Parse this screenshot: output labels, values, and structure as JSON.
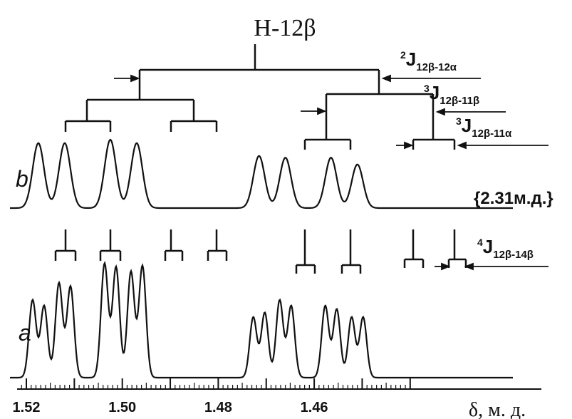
{
  "title": "H-12β",
  "trace_labels": {
    "b": "b",
    "a": "a"
  },
  "decoupling_note": "{2.31м.д.}",
  "couplings": {
    "j1": {
      "sup": "2",
      "main": "J",
      "sub": "12β-12α"
    },
    "j2": {
      "sup": "3",
      "main": "J",
      "sub": "12β-11β"
    },
    "j3": {
      "sup": "3",
      "main": "J",
      "sub": "12β-11α"
    },
    "j4": {
      "sup": "4",
      "main": "J",
      "sub": "12β-14β"
    }
  },
  "axis": {
    "label": "δ, м. д.",
    "direction": "decreasing-right",
    "range": [
      1.525,
      1.44
    ],
    "tick_labels": [
      "1.52",
      "1.50",
      "1.48",
      "1.46"
    ]
  },
  "spectrum_b": {
    "peak_positions_ppm": [
      1.5175,
      1.512,
      1.5025,
      1.497,
      1.4715,
      1.466,
      1.4565,
      1.451
    ],
    "peak_heights": [
      0.76,
      0.76,
      0.8,
      0.76,
      0.61,
      0.59,
      0.59,
      0.51
    ]
  },
  "spectrum_a": {
    "peak_positions_ppm": [
      1.5187,
      1.5163,
      1.5132,
      1.5108,
      1.5037,
      1.5013,
      1.4982,
      1.4958,
      1.4727,
      1.4703,
      1.4672,
      1.4648,
      1.4577,
      1.4553,
      1.4522,
      1.4498
    ],
    "peak_heights": [
      0.68,
      0.63,
      0.83,
      0.8,
      1.0,
      0.97,
      0.93,
      0.98,
      0.53,
      0.57,
      0.68,
      0.63,
      0.63,
      0.6,
      0.53,
      0.53
    ]
  },
  "colors": {
    "ink": "#111111",
    "background": "#ffffff"
  }
}
